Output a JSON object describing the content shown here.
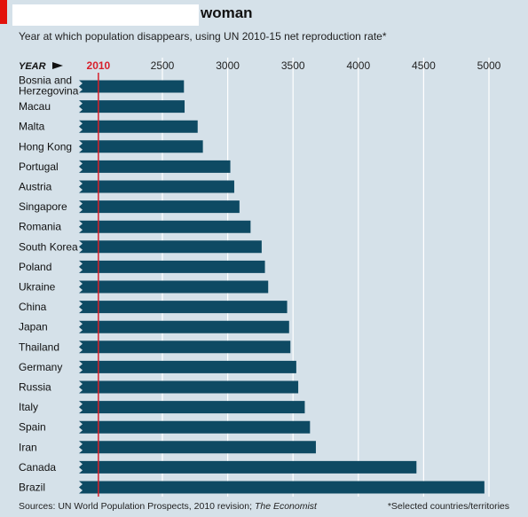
{
  "title_visible": "woman",
  "subtitle": "Year at which population disappears, using UN 2010-15 net reproduction rate*",
  "axis_word": "YEAR",
  "sources_prefix": "Sources: UN World Population Prospects, 2010 revision; ",
  "sources_publication": "The Economist",
  "note": "*Selected countries/territories",
  "colors": {
    "background": "#d5e1e9",
    "bar": "#0e4a63",
    "reference_line": "#d7202c",
    "gridline": "#ffffff",
    "brand_tab": "#e3120b"
  },
  "chart_data": {
    "type": "bar",
    "orientation": "horizontal",
    "categories": [
      "Bosnia and Herzegovina",
      "Macau",
      "Malta",
      "Hong Kong",
      "Portugal",
      "Austria",
      "Singapore",
      "Romania",
      "South Korea",
      "Poland",
      "Ukraine",
      "China",
      "Japan",
      "Thailand",
      "Germany",
      "Russia",
      "Italy",
      "Spain",
      "Iran",
      "Canada",
      "Brazil"
    ],
    "category_labels": [
      [
        "Bosnia and",
        "Herzegovina"
      ],
      [
        "Macau"
      ],
      [
        "Malta"
      ],
      [
        "Hong Kong"
      ],
      [
        "Portugal"
      ],
      [
        "Austria"
      ],
      [
        "Singapore"
      ],
      [
        "Romania"
      ],
      [
        "South Korea"
      ],
      [
        "Poland"
      ],
      [
        "Ukraine"
      ],
      [
        "China"
      ],
      [
        "Japan"
      ],
      [
        "Thailand"
      ],
      [
        "Germany"
      ],
      [
        "Russia"
      ],
      [
        "Italy"
      ],
      [
        "Spain"
      ],
      [
        "Iran"
      ],
      [
        "Canada"
      ],
      [
        "Brazil"
      ]
    ],
    "values": [
      2665,
      2670,
      2770,
      2810,
      3020,
      3050,
      3090,
      3175,
      3260,
      3285,
      3310,
      3455,
      3470,
      3480,
      3525,
      3540,
      3590,
      3630,
      3675,
      4445,
      4965
    ],
    "baseline": 1800,
    "reference_value": 2010,
    "reference_label": "2010",
    "xticks": [
      2500,
      3000,
      3500,
      4000,
      4500,
      5000
    ],
    "xtick_labels": [
      "2500",
      "3000",
      "3500",
      "4000",
      "4500",
      "5000"
    ],
    "xlim": [
      1800,
      5000
    ],
    "grid": true
  }
}
